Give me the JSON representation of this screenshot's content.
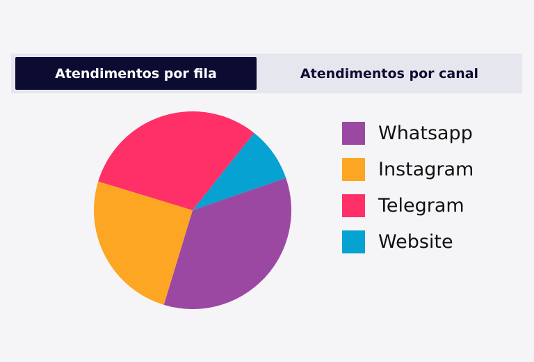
{
  "tabs": {
    "fila_label": "Atendimentos por fila",
    "canal_label": "Atendimentos por canal",
    "active": "fila"
  },
  "colors": {
    "active_tab_bg": "#0c0c33",
    "tab_bar_bg": "#e6e6ee"
  },
  "chart_data": {
    "type": "pie",
    "slices": [
      {
        "label": "Whatsapp",
        "value": 35,
        "color": "#9b48a3"
      },
      {
        "label": "Instagram",
        "value": 25,
        "color": "#fda623"
      },
      {
        "label": "Telegram",
        "value": 31,
        "color": "#ff3068"
      },
      {
        "label": "Website",
        "value": 9,
        "color": "#06a2d1"
      }
    ],
    "legend_position": "right"
  }
}
